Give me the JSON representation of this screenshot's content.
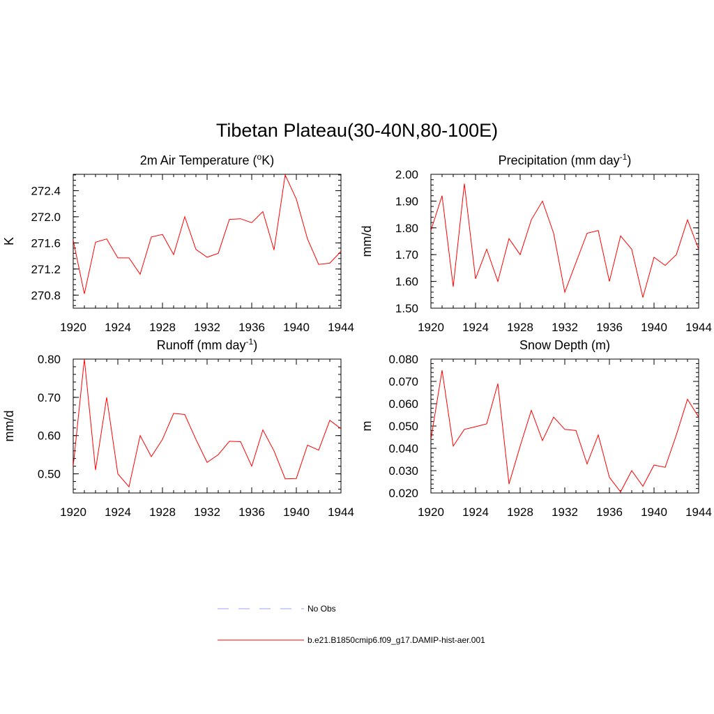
{
  "figure": {
    "title": "Tibetan Plateau(30-40N,80-100E)"
  },
  "legend": [
    {
      "label": "No Obs",
      "color": "#9c9cff",
      "dash": "dashed"
    },
    {
      "label": "b.e21.B1850cmip6.f09_g17.DAMIP-hist-aer.001",
      "color": "#ff0000",
      "dash": "solid"
    }
  ],
  "chart_data": [
    {
      "type": "line",
      "title": "2m Air Temperature (°K)",
      "title_parts": {
        "pre": "2m Air Temperature (",
        "sup": "o",
        "post": "K)"
      },
      "ylabel": "K",
      "xlabel": "",
      "xlim": [
        1920,
        1944
      ],
      "ylim": [
        270.6,
        272.65
      ],
      "x_ticks": [
        1920,
        1924,
        1928,
        1932,
        1936,
        1940,
        1944
      ],
      "y_ticks": [
        "270.8",
        "271.2",
        "271.6",
        "272.0",
        "272.4"
      ],
      "y_minor_step": 0.08,
      "x": [
        1920,
        1921,
        1922,
        1923,
        1924,
        1925,
        1926,
        1927,
        1928,
        1929,
        1930,
        1931,
        1932,
        1933,
        1934,
        1935,
        1936,
        1937,
        1938,
        1939,
        1940,
        1941,
        1942,
        1943,
        1944
      ],
      "series": [
        {
          "name": "b.e21.B1850cmip6.f09_g17.DAMIP-hist-aer.001",
          "color": "#ff0000",
          "values": [
            271.64,
            270.82,
            271.61,
            271.66,
            271.37,
            271.37,
            271.12,
            271.69,
            271.73,
            271.42,
            272.0,
            271.5,
            271.38,
            271.44,
            271.96,
            271.97,
            271.91,
            272.08,
            271.49,
            272.64,
            272.27,
            271.66,
            271.27,
            271.29,
            271.47
          ]
        }
      ]
    },
    {
      "type": "line",
      "title": "Precipitation (mm day-1)",
      "title_parts": {
        "pre": "Precipitation (mm day",
        "sup": "-1",
        "post": ")"
      },
      "ylabel": "mm/d",
      "xlabel": "",
      "xlim": [
        1920,
        1944
      ],
      "ylim": [
        1.5,
        2.0
      ],
      "x_ticks": [
        1920,
        1924,
        1928,
        1932,
        1936,
        1940,
        1944
      ],
      "y_ticks": [
        "1.50",
        "1.60",
        "1.70",
        "1.80",
        "1.90",
        "2.00"
      ],
      "y_minor_step": 0.02,
      "x": [
        1920,
        1921,
        1922,
        1923,
        1924,
        1925,
        1926,
        1927,
        1928,
        1929,
        1930,
        1931,
        1932,
        1933,
        1934,
        1935,
        1936,
        1937,
        1938,
        1939,
        1940,
        1941,
        1942,
        1943,
        1944
      ],
      "series": [
        {
          "name": "b.e21.B1850cmip6.f09_g17.DAMIP-hist-aer.001",
          "color": "#ff0000",
          "values": [
            1.79,
            1.92,
            1.58,
            1.965,
            1.61,
            1.72,
            1.6,
            1.76,
            1.7,
            1.83,
            1.9,
            1.78,
            1.56,
            1.67,
            1.78,
            1.79,
            1.6,
            1.77,
            1.72,
            1.54,
            1.69,
            1.66,
            1.7,
            1.83,
            1.72
          ]
        }
      ]
    },
    {
      "type": "line",
      "title": "Runoff (mm day-1)",
      "title_parts": {
        "pre": "Runoff (mm day",
        "sup": "-1",
        "post": ")"
      },
      "ylabel": "mm/d",
      "xlabel": "",
      "xlim": [
        1920,
        1944
      ],
      "ylim": [
        0.45,
        0.8
      ],
      "x_ticks": [
        1920,
        1924,
        1928,
        1932,
        1936,
        1940,
        1944
      ],
      "y_ticks": [
        "0.50",
        "0.60",
        "0.70",
        "0.80"
      ],
      "y_minor_step": 0.02,
      "x": [
        1920,
        1921,
        1922,
        1923,
        1924,
        1925,
        1926,
        1927,
        1928,
        1929,
        1930,
        1931,
        1932,
        1933,
        1934,
        1935,
        1936,
        1937,
        1938,
        1939,
        1940,
        1941,
        1942,
        1943,
        1944
      ],
      "series": [
        {
          "name": "b.e21.B1850cmip6.f09_g17.DAMIP-hist-aer.001",
          "color": "#ff0000",
          "values": [
            0.52,
            0.8,
            0.51,
            0.7,
            0.5,
            0.466,
            0.6,
            0.545,
            0.59,
            0.658,
            0.655,
            0.59,
            0.53,
            0.55,
            0.585,
            0.584,
            0.52,
            0.615,
            0.56,
            0.487,
            0.488,
            0.575,
            0.562,
            0.64,
            0.618
          ]
        }
      ]
    },
    {
      "type": "line",
      "title": "Snow Depth (m)",
      "title_parts": {
        "pre": "Snow Depth (m)",
        "sup": "",
        "post": ""
      },
      "ylabel": "m",
      "xlabel": "",
      "xlim": [
        1920,
        1944
      ],
      "ylim": [
        0.02,
        0.08
      ],
      "x_ticks": [
        1920,
        1924,
        1928,
        1932,
        1936,
        1940,
        1944
      ],
      "y_ticks": [
        "0.020",
        "0.030",
        "0.040",
        "0.050",
        "0.060",
        "0.070",
        "0.080"
      ],
      "y_minor_step": 0.002,
      "x": [
        1920,
        1921,
        1922,
        1923,
        1924,
        1925,
        1926,
        1927,
        1928,
        1929,
        1930,
        1931,
        1932,
        1933,
        1934,
        1935,
        1936,
        1937,
        1938,
        1939,
        1940,
        1941,
        1942,
        1943,
        1944
      ],
      "series": [
        {
          "name": "b.e21.B1850cmip6.f09_g17.DAMIP-hist-aer.001",
          "color": "#ff0000",
          "values": [
            0.044,
            0.075,
            0.041,
            0.0485,
            0.0497,
            0.051,
            0.069,
            0.024,
            0.041,
            0.057,
            0.0435,
            0.054,
            0.0485,
            0.048,
            0.033,
            0.046,
            0.027,
            0.0205,
            0.03,
            0.023,
            0.0325,
            0.0315,
            0.046,
            0.062,
            0.054
          ]
        }
      ]
    }
  ]
}
